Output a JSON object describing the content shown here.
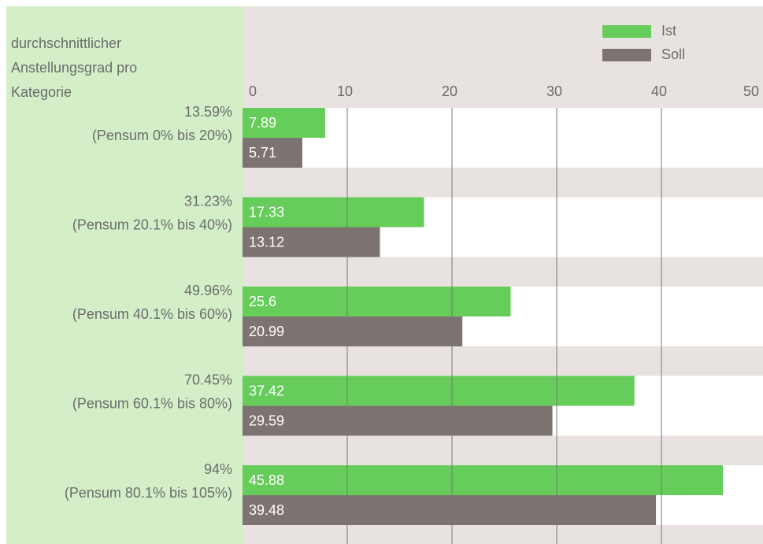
{
  "chart_data": {
    "type": "bar",
    "orientation": "horizontal",
    "y_label": [
      "durchschnittlicher",
      "Anstellungsgrad pro",
      "Kategorie"
    ],
    "categories": [
      [
        "13.59%",
        "(Pensum 0% bis 20%)"
      ],
      [
        "31.23%",
        "(Pensum 20.1% bis 40%)"
      ],
      [
        "49.96%",
        "(Pensum 40.1% bis 60%)"
      ],
      [
        "70.45%",
        "(Pensum 60.1% bis 80%)"
      ],
      [
        "94%",
        "(Pensum 80.1% bis 105%)"
      ]
    ],
    "series": [
      {
        "name": "Ist",
        "color": "#66cc5a",
        "values": [
          7.89,
          17.33,
          25.6,
          37.42,
          45.88
        ]
      },
      {
        "name": "Soll",
        "color": "#7d7370",
        "values": [
          5.71,
          13.12,
          20.99,
          29.59,
          39.48
        ]
      }
    ],
    "xlim": [
      0,
      50
    ],
    "xticks": [
      0,
      10,
      20,
      30,
      40,
      50
    ],
    "grid": true,
    "legend": "top-right"
  }
}
